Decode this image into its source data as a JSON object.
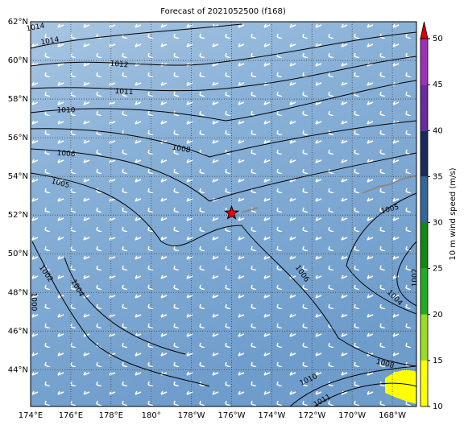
{
  "chart_data": {
    "type": "map",
    "title": "Forecast of 2021052500 (f168)",
    "xlim": [
      174,
      193.2
    ],
    "ylim": [
      42.1,
      62
    ],
    "xticks": [
      {
        "value": 174,
        "label": "174°E"
      },
      {
        "value": 176,
        "label": "176°E"
      },
      {
        "value": 178,
        "label": "178°E"
      },
      {
        "value": 180,
        "label": "180°"
      },
      {
        "value": 182,
        "label": "178°W"
      },
      {
        "value": 184,
        "label": "176°W"
      },
      {
        "value": 186,
        "label": "174°W"
      },
      {
        "value": 188,
        "label": "172°W"
      },
      {
        "value": 190,
        "label": "170°W"
      },
      {
        "value": 192,
        "label": "168°W"
      }
    ],
    "yticks": [
      {
        "value": 44,
        "label": "44°N"
      },
      {
        "value": 46,
        "label": "46°N"
      },
      {
        "value": 48,
        "label": "48°N"
      },
      {
        "value": 50,
        "label": "50°N"
      },
      {
        "value": 52,
        "label": "52°N"
      },
      {
        "value": 54,
        "label": "54°N"
      },
      {
        "value": 56,
        "label": "56°N"
      },
      {
        "value": 58,
        "label": "58°N"
      },
      {
        "value": 60,
        "label": "60°N"
      },
      {
        "value": 62,
        "label": "62°N"
      }
    ],
    "grid": true,
    "marker": {
      "lon": 184,
      "lat": 52.1,
      "color": "#ff0000"
    },
    "isobar_labels": [
      1014,
      1014,
      1012,
      1011,
      1010,
      1008,
      1006,
      1005,
      1005,
      1002,
      1004,
      1006,
      1004,
      1008,
      1010,
      1011,
      1000,
      1002
    ],
    "colorbar": {
      "label": "10 m wind speed (m/s)",
      "clim": [
        10,
        50
      ],
      "ticks": [
        10,
        15,
        20,
        25,
        30,
        35,
        40,
        45,
        50
      ],
      "colors": [
        "#ffff00",
        "#99dd22",
        "#22aa22",
        "#118811",
        "#336699",
        "#1a2a5a",
        "#6a2aa0",
        "#a030b8"
      ],
      "extend_color": "#dd0000"
    }
  }
}
